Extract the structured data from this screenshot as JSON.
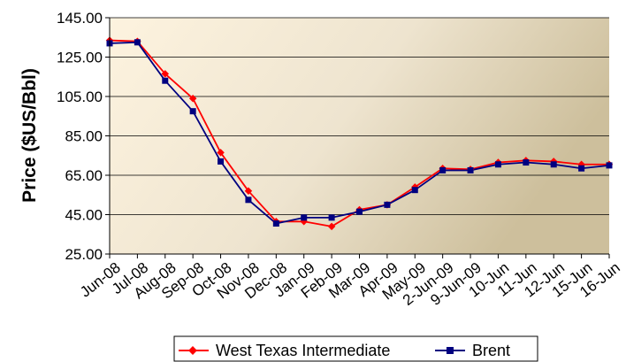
{
  "chart_data": {
    "type": "line",
    "title": "",
    "xlabel": "",
    "ylabel": "Price ($US/Bbl)",
    "categories": [
      "Jun-08",
      "Jul-08",
      "Aug-08",
      "Sep-08",
      "Oct-08",
      "Nov-08",
      "Dec-08",
      "Jan-09",
      "Feb-09",
      "Mar-09",
      "Apr-09",
      "May-09",
      "2-Jun-09",
      "9-Jun-09",
      "10-Jun",
      "11-Jun",
      "12-Jun",
      "15-Jun",
      "16-Jun"
    ],
    "yticks": [
      "25.00",
      "45.00",
      "65.00",
      "85.00",
      "105.00",
      "125.00",
      "145.00"
    ],
    "ylim": [
      25,
      145
    ],
    "grid": "horizontal",
    "legend_position": "bottom",
    "series": [
      {
        "name": "West Texas Intermediate",
        "color": "#ff0000",
        "marker": "diamond",
        "values": [
          133.5,
          133.0,
          116.5,
          104.0,
          76.5,
          57.0,
          41.5,
          41.5,
          39.0,
          47.5,
          50.0,
          59.0,
          68.5,
          68.0,
          71.5,
          72.5,
          72.0,
          70.5,
          70.5
        ]
      },
      {
        "name": "Brent",
        "color": "#000080",
        "marker": "square",
        "values": [
          132.0,
          132.5,
          113.0,
          97.5,
          72.0,
          52.5,
          40.5,
          43.5,
          43.5,
          46.5,
          50.0,
          57.5,
          67.5,
          67.5,
          70.5,
          71.5,
          70.5,
          68.5,
          70.0
        ]
      }
    ]
  }
}
